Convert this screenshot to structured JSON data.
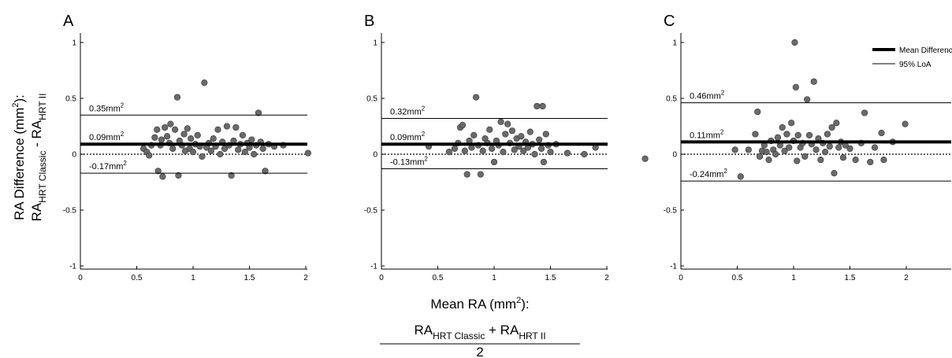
{
  "figure": {
    "y_label_main": "RA Difference (mm",
    "y_label_sup": "2",
    "y_label_tail": "):",
    "y_label2_a": "RA",
    "y_label2_sub_a": "HRT Classic",
    "y_label2_mid": " - RA",
    "y_label2_sub_b": "HRT II",
    "x_label_main": "Mean RA (mm",
    "x_label_sup": "2",
    "x_label_tail": "):",
    "x_frac_a": "RA",
    "x_frac_sub_a": "HRT Classic",
    "x_frac_mid": " + RA",
    "x_frac_sub_b": "HRT II",
    "x_frac_den": "2",
    "legend": [
      {
        "label": "Mean Difference",
        "style": "thick"
      },
      {
        "label": "95% LoA",
        "style": "thin"
      }
    ]
  },
  "chart_data": [
    {
      "type": "scatter",
      "panel": "A",
      "xlim": [
        0,
        2.4
      ],
      "ylim": [
        -1.05,
        1.05
      ],
      "xticks": [
        "0",
        "0.5",
        "1",
        "1.5",
        "2"
      ],
      "yticks": [
        "-1",
        "-0.5",
        "0",
        "0.5",
        "1"
      ],
      "mean_diff": 0.09,
      "upper_loa": 0.35,
      "lower_loa": -0.17,
      "mean_label": "0.09mm",
      "upper_label": "0.35mm",
      "lower_label": "-0.17mm",
      "unit_sup": "2",
      "points": [
        [
          0.56,
          0.05
        ],
        [
          0.59,
          0.02
        ],
        [
          0.61,
          -0.01
        ],
        [
          0.63,
          0.08
        ],
        [
          0.66,
          0.15
        ],
        [
          0.68,
          0.22
        ],
        [
          0.69,
          -0.15
        ],
        [
          0.71,
          0.08
        ],
        [
          0.72,
          0.13
        ],
        [
          0.73,
          -0.2
        ],
        [
          0.75,
          0.24
        ],
        [
          0.77,
          0.16
        ],
        [
          0.79,
          0.1
        ],
        [
          0.8,
          0.27
        ],
        [
          0.82,
          0.05
        ],
        [
          0.84,
          0.22
        ],
        [
          0.86,
          0.51
        ],
        [
          0.87,
          -0.19
        ],
        [
          0.88,
          0.12
        ],
        [
          0.9,
          0.08
        ],
        [
          0.92,
          0.18
        ],
        [
          0.93,
          0.03
        ],
        [
          0.95,
          0.23
        ],
        [
          0.97,
          0.05
        ],
        [
          0.98,
          0.14
        ],
        [
          1.0,
          0.02
        ],
        [
          1.02,
          0.09
        ],
        [
          1.04,
          0.17
        ],
        [
          1.06,
          0.07
        ],
        [
          1.08,
          -0.02
        ],
        [
          1.1,
          0.64
        ],
        [
          1.12,
          0.06
        ],
        [
          1.14,
          0.1
        ],
        [
          1.16,
          0.03
        ],
        [
          1.18,
          0.14
        ],
        [
          1.2,
          0.07
        ],
        [
          1.22,
          0.22
        ],
        [
          1.24,
          0.0
        ],
        [
          1.26,
          0.11
        ],
        [
          1.28,
          0.05
        ],
        [
          1.3,
          0.25
        ],
        [
          1.32,
          0.08
        ],
        [
          1.34,
          -0.19
        ],
        [
          1.36,
          0.12
        ],
        [
          1.38,
          0.24
        ],
        [
          1.4,
          0.04
        ],
        [
          1.42,
          0.09
        ],
        [
          1.44,
          0.17
        ],
        [
          1.46,
          0.02
        ],
        [
          1.48,
          0.1
        ],
        [
          1.5,
          0.06
        ],
        [
          1.52,
          0.13
        ],
        [
          1.54,
          0.0
        ],
        [
          1.56,
          0.08
        ],
        [
          1.58,
          0.37
        ],
        [
          1.6,
          0.11
        ],
        [
          1.62,
          0.05
        ],
        [
          1.64,
          -0.15
        ],
        [
          1.67,
          0.09
        ],
        [
          1.72,
          0.07
        ],
        [
          1.8,
          0.08
        ],
        [
          2.02,
          0.01
        ]
      ]
    },
    {
      "type": "scatter",
      "panel": "B",
      "xlim": [
        0,
        2.4
      ],
      "ylim": [
        -1.05,
        1.05
      ],
      "xticks": [
        "0",
        "0.5",
        "1",
        "1.5",
        "2"
      ],
      "yticks": [
        "-1",
        "-0.5",
        "0",
        "0.5",
        "1"
      ],
      "mean_diff": 0.09,
      "upper_loa": 0.32,
      "lower_loa": -0.13,
      "mean_label": "0.09mm",
      "upper_label": "0.32mm",
      "lower_label": "-0.13mm",
      "unit_sup": "2",
      "points": [
        [
          0.42,
          0.07
        ],
        [
          0.6,
          0.02
        ],
        [
          0.65,
          0.05
        ],
        [
          0.68,
          0.1
        ],
        [
          0.7,
          0.24
        ],
        [
          0.72,
          0.26
        ],
        [
          0.74,
          0.03
        ],
        [
          0.76,
          -0.18
        ],
        [
          0.78,
          0.12
        ],
        [
          0.8,
          0.06
        ],
        [
          0.82,
          0.17
        ],
        [
          0.84,
          0.51
        ],
        [
          0.86,
          0.08
        ],
        [
          0.88,
          -0.18
        ],
        [
          0.9,
          0.03
        ],
        [
          0.92,
          0.14
        ],
        [
          0.94,
          0.1
        ],
        [
          0.96,
          0.22
        ],
        [
          0.98,
          0.05
        ],
        [
          1.0,
          -0.07
        ],
        [
          1.02,
          0.12
        ],
        [
          1.04,
          0.08
        ],
        [
          1.06,
          0.29
        ],
        [
          1.08,
          0.02
        ],
        [
          1.1,
          0.18
        ],
        [
          1.12,
          0.27
        ],
        [
          1.14,
          0.1
        ],
        [
          1.16,
          0.21
        ],
        [
          1.18,
          0.04
        ],
        [
          1.2,
          0.14
        ],
        [
          1.22,
          0.07
        ],
        [
          1.24,
          0.16
        ],
        [
          1.26,
          0.03
        ],
        [
          1.28,
          0.11
        ],
        [
          1.3,
          0.06
        ],
        [
          1.32,
          0.2
        ],
        [
          1.34,
          0.09
        ],
        [
          1.36,
          0.0
        ],
        [
          1.38,
          0.43
        ],
        [
          1.4,
          0.13
        ],
        [
          1.42,
          0.05
        ],
        [
          1.43,
          0.43
        ],
        [
          1.44,
          -0.07
        ],
        [
          1.46,
          0.18
        ],
        [
          1.48,
          0.08
        ],
        [
          1.5,
          0.02
        ],
        [
          1.55,
          0.09
        ],
        [
          1.65,
          0.01
        ],
        [
          1.8,
          0.0
        ],
        [
          1.9,
          0.06
        ],
        [
          2.34,
          -0.04
        ]
      ]
    },
    {
      "type": "scatter",
      "panel": "C",
      "xlim": [
        0,
        2.4
      ],
      "ylim": [
        -1.05,
        1.05
      ],
      "xticks": [
        "0",
        "0.5",
        "1",
        "1.5",
        "2"
      ],
      "yticks": [
        "-1",
        "-0.5",
        "0",
        "0.5",
        "1"
      ],
      "mean_diff": 0.11,
      "upper_loa": 0.46,
      "lower_loa": -0.24,
      "mean_label": "0.11mm",
      "upper_label": "0.46mm",
      "lower_label": "-0.24mm",
      "unit_sup": "2",
      "points": [
        [
          0.48,
          0.04
        ],
        [
          0.53,
          -0.2
        ],
        [
          0.6,
          0.04
        ],
        [
          0.66,
          0.18
        ],
        [
          0.68,
          0.38
        ],
        [
          0.7,
          -0.02
        ],
        [
          0.72,
          0.03
        ],
        [
          0.74,
          0.08
        ],
        [
          0.76,
          0.02
        ],
        [
          0.78,
          -0.05
        ],
        [
          0.8,
          0.12
        ],
        [
          0.82,
          0.04
        ],
        [
          0.84,
          0.0
        ],
        [
          0.86,
          0.15
        ],
        [
          0.88,
          0.08
        ],
        [
          0.9,
          0.24
        ],
        [
          0.92,
          0.03
        ],
        [
          0.94,
          0.18
        ],
        [
          0.96,
          0.06
        ],
        [
          0.98,
          0.28
        ],
        [
          1.0,
          0.12
        ],
        [
          1.01,
          1.0
        ],
        [
          1.02,
          0.6
        ],
        [
          1.03,
          -0.06
        ],
        [
          1.04,
          0.17
        ],
        [
          1.06,
          0.06
        ],
        [
          1.08,
          0.1
        ],
        [
          1.1,
          -0.02
        ],
        [
          1.12,
          0.49
        ],
        [
          1.14,
          0.17
        ],
        [
          1.16,
          0.09
        ],
        [
          1.18,
          0.65
        ],
        [
          1.2,
          0.04
        ],
        [
          1.22,
          0.14
        ],
        [
          1.24,
          -0.05
        ],
        [
          1.26,
          0.1
        ],
        [
          1.28,
          0.02
        ],
        [
          1.3,
          0.18
        ],
        [
          1.32,
          0.07
        ],
        [
          1.34,
          0.24
        ],
        [
          1.36,
          -0.17
        ],
        [
          1.38,
          0.28
        ],
        [
          1.4,
          0.06
        ],
        [
          1.42,
          0.11
        ],
        [
          1.44,
          -0.03
        ],
        [
          1.46,
          0.08
        ],
        [
          1.5,
          0.05
        ],
        [
          1.55,
          -0.05
        ],
        [
          1.6,
          0.1
        ],
        [
          1.63,
          0.37
        ],
        [
          1.68,
          -0.07
        ],
        [
          1.72,
          0.06
        ],
        [
          1.78,
          0.19
        ],
        [
          1.8,
          -0.05
        ],
        [
          1.88,
          0.11
        ],
        [
          1.99,
          0.27
        ]
      ]
    }
  ]
}
